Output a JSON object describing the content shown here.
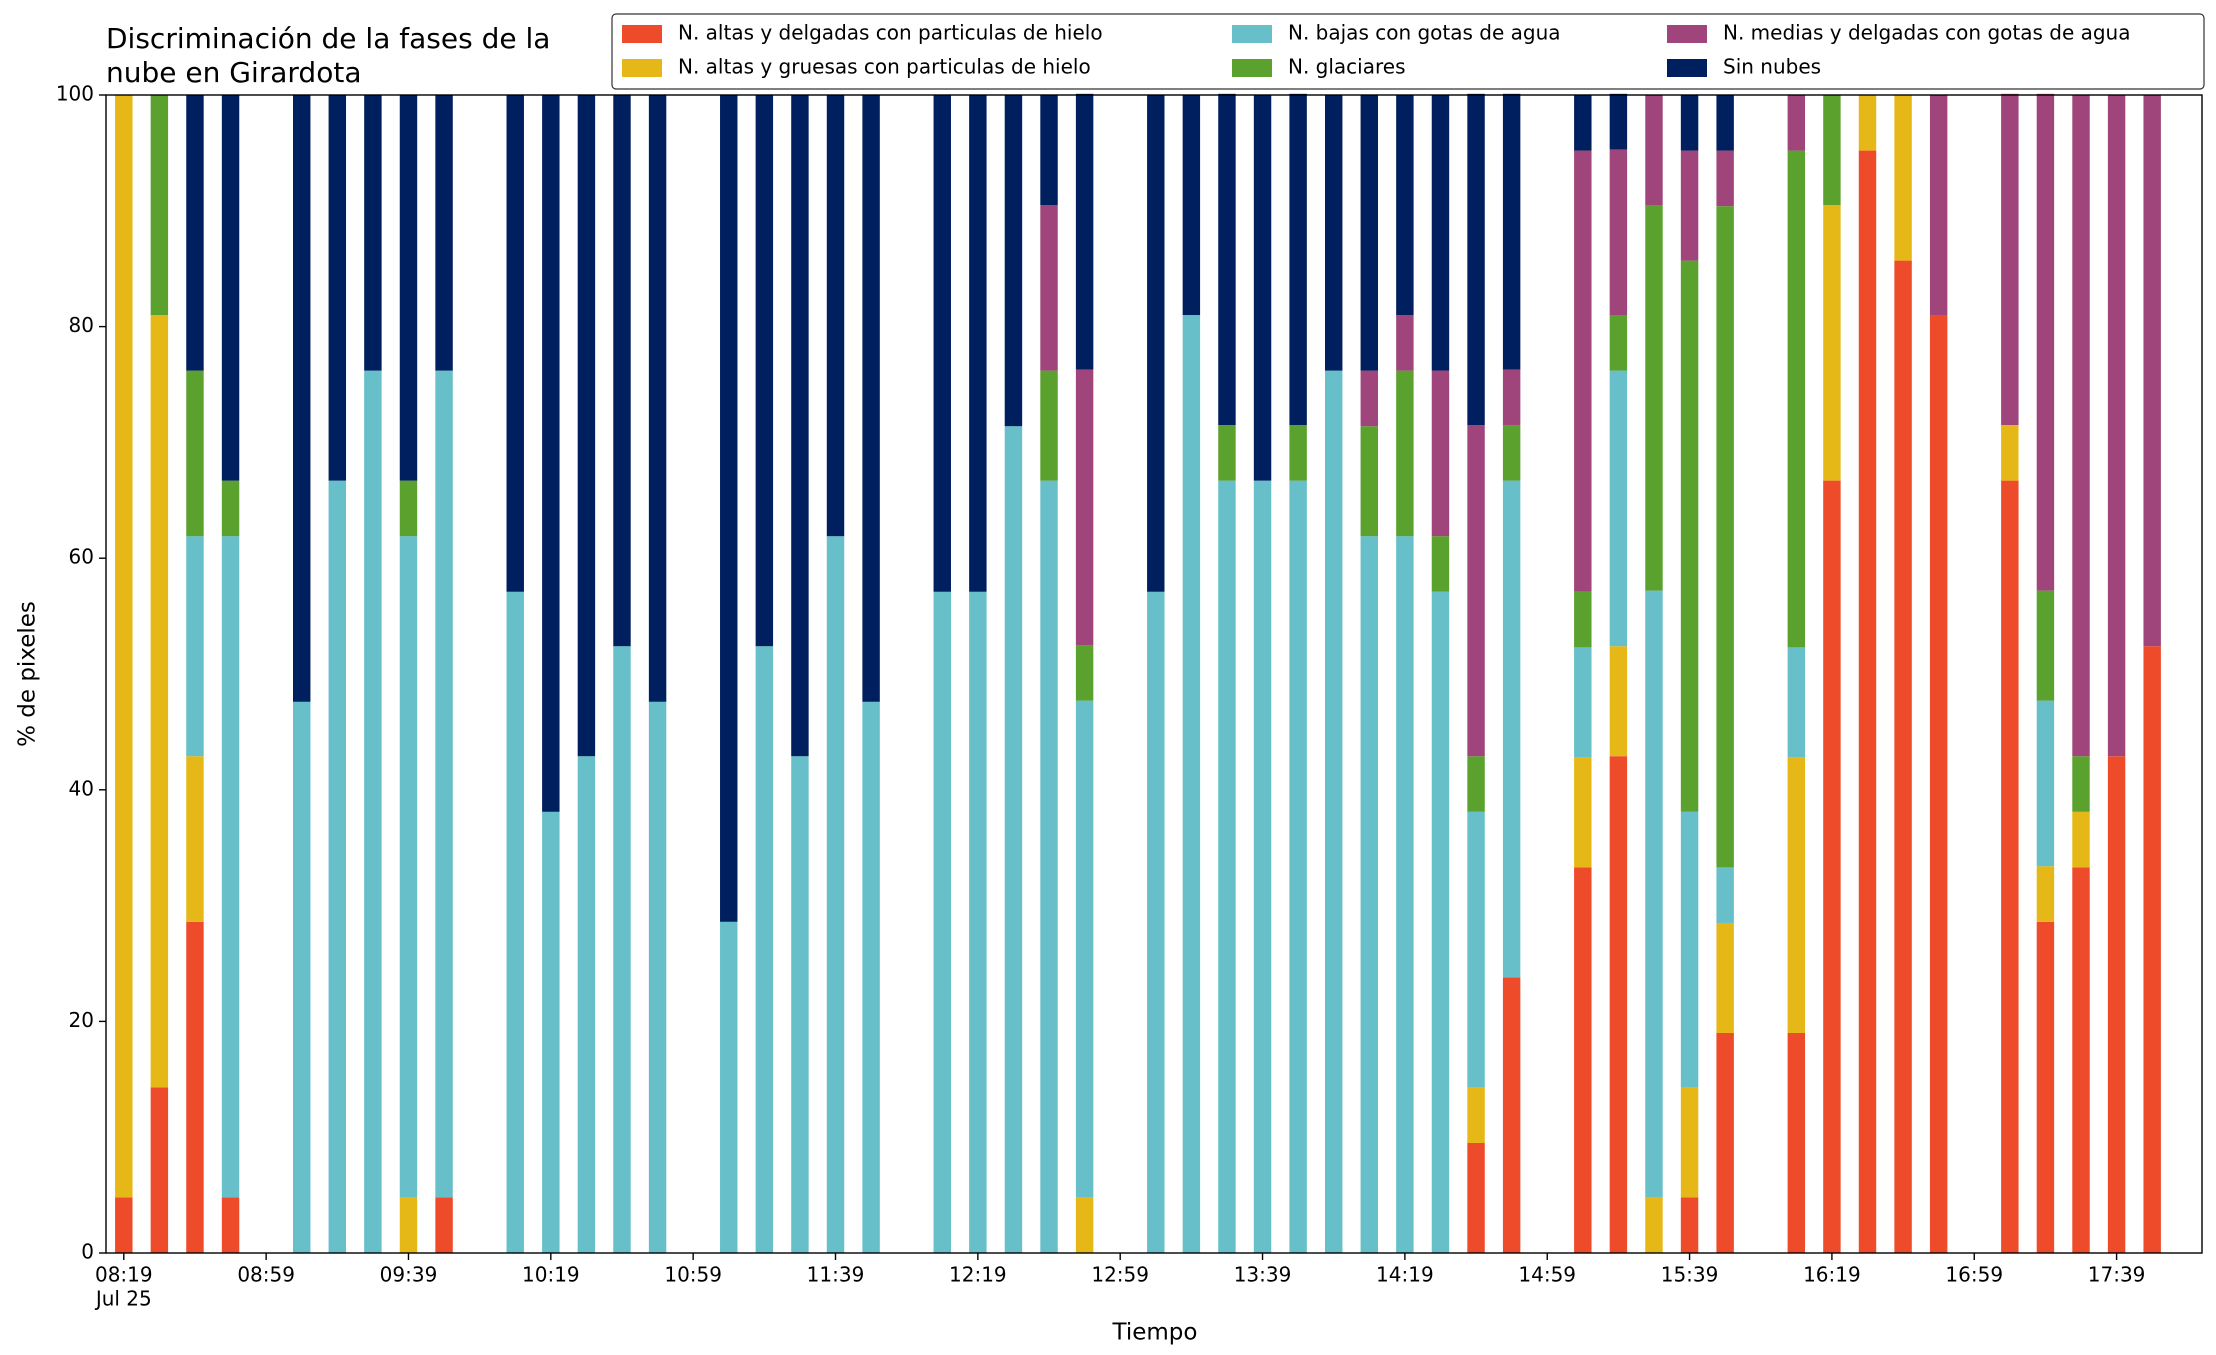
{
  "chart_data": {
    "type": "stacked_bar",
    "title": "Discriminación de la fases de la\nnube en Girardota",
    "x_label": "Tiempo",
    "y_label": "% de pixeles",
    "x_date_label": "Jul 25",
    "x": [
      "08:19",
      "08:29",
      "08:39",
      "08:49",
      "09:09",
      "09:19",
      "09:29",
      "09:39",
      "09:49",
      "10:09",
      "10:19",
      "10:29",
      "10:39",
      "10:49",
      "11:09",
      "11:19",
      "11:29",
      "11:39",
      "11:49",
      "12:09",
      "12:19",
      "12:29",
      "12:39",
      "12:49",
      "13:09",
      "13:19",
      "13:29",
      "13:39",
      "13:49",
      "13:59",
      "14:09",
      "14:19",
      "14:29",
      "14:39",
      "14:49",
      "15:09",
      "15:19",
      "15:29",
      "15:39",
      "15:49",
      "16:09",
      "16:19",
      "16:29",
      "16:39",
      "16:49",
      "17:09",
      "17:19",
      "17:29",
      "17:39",
      "17:49"
    ],
    "series": [
      {
        "name": "N. altas y delgadas con particulas de hielo",
        "color": "#ee4b2b",
        "values": [
          4.8,
          14.3,
          28.6,
          4.8,
          0,
          0,
          0,
          0,
          4.8,
          0,
          0,
          0,
          0,
          0,
          0,
          0,
          0,
          0,
          0,
          0,
          0,
          0,
          0,
          0,
          0,
          0,
          0,
          0,
          0,
          0,
          0,
          0,
          0,
          9.5,
          23.8,
          33.3,
          42.9,
          0,
          4.8,
          19.0,
          19.0,
          66.7,
          95.2,
          85.7,
          81.0,
          66.7,
          28.6,
          33.3,
          42.9,
          52.4
        ]
      },
      {
        "name": "N. altas y gruesas con particulas de hielo",
        "color": "#e6b817",
        "values": [
          95.2,
          66.7,
          14.3,
          0,
          0,
          0,
          0,
          4.8,
          0,
          0,
          0,
          0,
          0,
          0,
          0,
          0,
          0,
          0,
          0,
          0,
          0,
          0,
          0,
          4.8,
          0,
          0,
          0,
          0,
          0,
          0,
          0,
          0,
          0,
          4.8,
          0,
          9.5,
          9.5,
          4.8,
          9.5,
          9.5,
          23.8,
          23.8,
          4.8,
          14.3,
          0,
          4.8,
          4.8,
          4.8,
          0,
          0
        ]
      },
      {
        "name": "N. bajas con gotas de agua",
        "color": "#67bfca",
        "values": [
          0,
          0,
          19.0,
          57.1,
          47.6,
          66.7,
          76.2,
          57.1,
          71.4,
          57.1,
          38.1,
          42.9,
          52.4,
          47.6,
          28.6,
          52.4,
          42.9,
          61.9,
          47.6,
          57.1,
          57.1,
          71.4,
          66.7,
          42.9,
          57.1,
          81.0,
          66.7,
          66.7,
          66.7,
          76.2,
          61.9,
          61.9,
          57.1,
          23.8,
          42.9,
          9.5,
          23.8,
          52.4,
          23.8,
          4.8,
          9.5,
          0,
          0,
          0,
          0,
          0,
          14.3,
          0,
          0,
          0
        ]
      },
      {
        "name": "N. glaciares",
        "color": "#5ba12e",
        "values": [
          0,
          19.0,
          14.3,
          4.8,
          0,
          0,
          0,
          4.8,
          0,
          0,
          0,
          0,
          0,
          0,
          0,
          0,
          0,
          0,
          0,
          0,
          0,
          0,
          9.5,
          4.8,
          0,
          0,
          4.8,
          0,
          4.8,
          0,
          9.5,
          14.3,
          4.8,
          4.8,
          4.8,
          4.8,
          4.8,
          33.3,
          47.6,
          57.1,
          42.9,
          9.5,
          0,
          0,
          0,
          0,
          9.5,
          4.8,
          0,
          0
        ]
      },
      {
        "name": "N. medias y delgadas con gotas de agua",
        "color": "#a0457b",
        "values": [
          0,
          0,
          0,
          0,
          0,
          0,
          0,
          0,
          0,
          0,
          0,
          0,
          0,
          0,
          0,
          0,
          0,
          0,
          0,
          0,
          0,
          0,
          14.3,
          23.8,
          0,
          0,
          0,
          0,
          0,
          0,
          4.8,
          4.8,
          14.3,
          28.6,
          4.8,
          38.1,
          14.3,
          9.5,
          9.5,
          4.8,
          4.8,
          0,
          0,
          0,
          19.0,
          28.6,
          42.9,
          57.1,
          57.1,
          47.6
        ]
      },
      {
        "name": "Sin nubes",
        "color": "#001f5f",
        "values": [
          0,
          0,
          23.8,
          33.3,
          52.4,
          33.3,
          23.8,
          33.3,
          23.8,
          42.9,
          61.9,
          57.1,
          47.6,
          52.4,
          71.4,
          47.6,
          57.1,
          38.1,
          52.4,
          42.9,
          42.9,
          28.6,
          9.5,
          23.8,
          42.9,
          19.0,
          28.6,
          33.3,
          28.6,
          23.8,
          23.8,
          19.0,
          23.8,
          28.6,
          23.8,
          4.8,
          4.8,
          0,
          4.8,
          4.8,
          0,
          0,
          0,
          0,
          0,
          0,
          0,
          0,
          0,
          0
        ]
      }
    ],
    "xlim": [
      "08:14",
      "18:03"
    ],
    "xticks": [
      "08:19",
      "08:59",
      "09:39",
      "10:19",
      "10:59",
      "11:39",
      "12:19",
      "12:59",
      "13:39",
      "14:19",
      "14:59",
      "15:39",
      "16:19",
      "16:59",
      "17:39"
    ],
    "ylim": [
      0,
      100
    ],
    "yticks": [
      0,
      20,
      40,
      60,
      80,
      100
    ],
    "legend": "top-right",
    "grid": false
  }
}
